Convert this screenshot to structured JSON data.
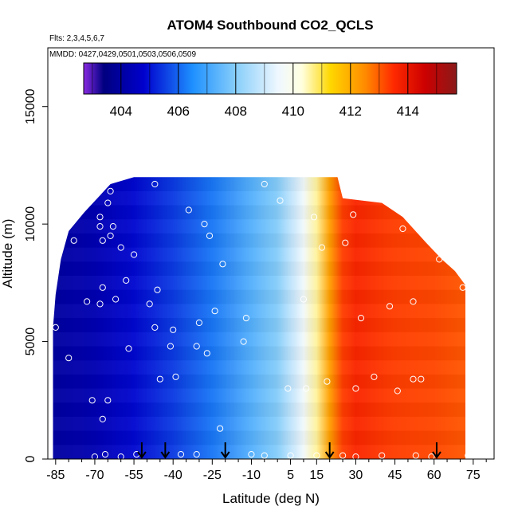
{
  "chart_data": {
    "type": "heatmap",
    "title": "ATOM4 Southbound CO2_QCLS",
    "note_flights": "Flts: 2,3,4,5,6,7",
    "note_dates": "MMDD: 0427,0429,0501,0503,0506,0509",
    "xlabel": "Latitude (deg N)",
    "ylabel": "Altitude (m)",
    "xlim": [
      -88,
      83
    ],
    "ylim": [
      0,
      17500
    ],
    "x_ticks": [
      -85,
      -70,
      -55,
      -40,
      -25,
      -10,
      5,
      15,
      30,
      45,
      60,
      75
    ],
    "y_ticks": [
      0,
      5000,
      10000,
      15000
    ],
    "colorbar": {
      "range": [
        402.7,
        415.7
      ],
      "ticks": [
        404,
        406,
        408,
        410,
        412,
        414
      ],
      "colors": [
        {
          "v": 402.7,
          "c": "#8a2be2"
        },
        {
          "v": 403.4,
          "c": "#000080"
        },
        {
          "v": 404.8,
          "c": "#0000cd"
        },
        {
          "v": 406.5,
          "c": "#1e90ff"
        },
        {
          "v": 408.0,
          "c": "#87cefa"
        },
        {
          "v": 409.5,
          "c": "#f0f8ff"
        },
        {
          "v": 410.3,
          "c": "#ffffe0"
        },
        {
          "v": 411.3,
          "c": "#ffd700"
        },
        {
          "v": 412.5,
          "c": "#ff8c00"
        },
        {
          "v": 413.5,
          "c": "#ff2a00"
        },
        {
          "v": 414.6,
          "c": "#cc0000"
        },
        {
          "v": 415.7,
          "c": "#8b1a1a"
        }
      ]
    },
    "field_lat_nodes": [
      -85,
      -70,
      -55,
      -40,
      -25,
      -10,
      0,
      5,
      10,
      15,
      20,
      25,
      30,
      45,
      60,
      75
    ],
    "field_co2_nodes": [
      404.0,
      404.3,
      404.9,
      405.5,
      406.2,
      407.3,
      408.0,
      408.8,
      409.6,
      410.6,
      412.2,
      413.3,
      413.6,
      413.3,
      413.2,
      413.0
    ],
    "domain_envelope": [
      {
        "lat": -86,
        "alt": 5600
      },
      {
        "lat": -85,
        "alt": 7000
      },
      {
        "lat": -83,
        "alt": 8500
      },
      {
        "lat": -80,
        "alt": 9700
      },
      {
        "lat": -74,
        "alt": 10500
      },
      {
        "lat": -64,
        "alt": 11700
      },
      {
        "lat": -55,
        "alt": 12000
      },
      {
        "lat": -40,
        "alt": 12000
      },
      {
        "lat": 0,
        "alt": 12000
      },
      {
        "lat": 23,
        "alt": 12000
      },
      {
        "lat": 25,
        "alt": 11100
      },
      {
        "lat": 40,
        "alt": 10900
      },
      {
        "lat": 48,
        "alt": 10300
      },
      {
        "lat": 57,
        "alt": 9200
      },
      {
        "lat": 63,
        "alt": 8500
      },
      {
        "lat": 68,
        "alt": 8000
      },
      {
        "lat": 72,
        "alt": 7400
      },
      {
        "lat": 72,
        "alt": 0
      }
    ],
    "samples": [
      {
        "lat": -70,
        "alt": 100
      },
      {
        "lat": -66,
        "alt": 200
      },
      {
        "lat": -60,
        "alt": 100
      },
      {
        "lat": -54,
        "alt": 200
      },
      {
        "lat": -37,
        "alt": 200
      },
      {
        "lat": -31,
        "alt": 200
      },
      {
        "lat": -10,
        "alt": 200
      },
      {
        "lat": -5,
        "alt": 150
      },
      {
        "lat": 5,
        "alt": 150
      },
      {
        "lat": 15,
        "alt": 150
      },
      {
        "lat": 25,
        "alt": 150
      },
      {
        "lat": 30,
        "alt": 100
      },
      {
        "lat": 40,
        "alt": 150
      },
      {
        "lat": 53,
        "alt": 150
      },
      {
        "lat": 59,
        "alt": 100
      },
      {
        "lat": 73,
        "alt": 150
      },
      {
        "lat": -67,
        "alt": 1700
      },
      {
        "lat": -71,
        "alt": 2500
      },
      {
        "lat": -65,
        "alt": 2500
      },
      {
        "lat": -80,
        "alt": 4300
      },
      {
        "lat": -57,
        "alt": 4700
      },
      {
        "lat": -45,
        "alt": 3400
      },
      {
        "lat": -39,
        "alt": 3500
      },
      {
        "lat": -27,
        "alt": 4500
      },
      {
        "lat": -22,
        "alt": 1300
      },
      {
        "lat": -13,
        "alt": 5000
      },
      {
        "lat": 4,
        "alt": 3000
      },
      {
        "lat": 11,
        "alt": 3000
      },
      {
        "lat": 19,
        "alt": 3300
      },
      {
        "lat": 30,
        "alt": 3000
      },
      {
        "lat": 37,
        "alt": 3500
      },
      {
        "lat": 46,
        "alt": 2900
      },
      {
        "lat": 52,
        "alt": 3400
      },
      {
        "lat": 55,
        "alt": 3400
      },
      {
        "lat": -73,
        "alt": 6700
      },
      {
        "lat": -68,
        "alt": 6600
      },
      {
        "lat": -62,
        "alt": 6800
      },
      {
        "lat": -67,
        "alt": 7300
      },
      {
        "lat": -58,
        "alt": 7600
      },
      {
        "lat": -49,
        "alt": 6600
      },
      {
        "lat": -46,
        "alt": 7200
      },
      {
        "lat": -47,
        "alt": 5600
      },
      {
        "lat": -40,
        "alt": 5500
      },
      {
        "lat": -41,
        "alt": 4800
      },
      {
        "lat": -31,
        "alt": 4800
      },
      {
        "lat": -30,
        "alt": 5800
      },
      {
        "lat": -24,
        "alt": 6300
      },
      {
        "lat": -12,
        "alt": 6000
      },
      {
        "lat": 10,
        "alt": 6800
      },
      {
        "lat": 32,
        "alt": 6000
      },
      {
        "lat": 43,
        "alt": 6500
      },
      {
        "lat": 52,
        "alt": 6700
      },
      {
        "lat": -78,
        "alt": 9300
      },
      {
        "lat": -67,
        "alt": 9300
      },
      {
        "lat": -64,
        "alt": 9500
      },
      {
        "lat": -63,
        "alt": 9900
      },
      {
        "lat": -60,
        "alt": 9000
      },
      {
        "lat": -55,
        "alt": 8700
      },
      {
        "lat": -68,
        "alt": 10300
      },
      {
        "lat": -68,
        "alt": 9900
      },
      {
        "lat": -65,
        "alt": 10900
      },
      {
        "lat": -64,
        "alt": 11400
      },
      {
        "lat": -83,
        "alt": 9500
      },
      {
        "lat": -47,
        "alt": 11700
      },
      {
        "lat": -34,
        "alt": 10600
      },
      {
        "lat": -28,
        "alt": 10000
      },
      {
        "lat": -26,
        "alt": 9500
      },
      {
        "lat": -21,
        "alt": 8300
      },
      {
        "lat": -5,
        "alt": 11700
      },
      {
        "lat": 1,
        "alt": 11000
      },
      {
        "lat": 14,
        "alt": 10300
      },
      {
        "lat": 29,
        "alt": 10400
      },
      {
        "lat": 17,
        "alt": 9000
      },
      {
        "lat": 26,
        "alt": 9200
      },
      {
        "lat": 48,
        "alt": 9800
      },
      {
        "lat": 56,
        "alt": 9700
      },
      {
        "lat": 62,
        "alt": 8500
      },
      {
        "lat": 71,
        "alt": 7300
      },
      {
        "lat": -85,
        "alt": 5600
      }
    ],
    "arrow_latitudes": [
      -52,
      -43,
      -20,
      20,
      61
    ]
  }
}
